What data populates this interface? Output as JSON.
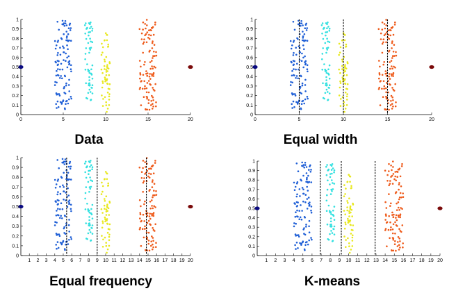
{
  "colors": {
    "cluster1": "#1f5fd6",
    "cluster2": "#33e0e0",
    "cluster3": "#e8e820",
    "cluster4": "#ee5a1a",
    "left_outlier": "#0a0a80",
    "right_outlier": "#7a0a0a",
    "cut_line": "#000000"
  },
  "chart_data": [
    {
      "type": "scatter",
      "title": "Data",
      "xlim": [
        0,
        20
      ],
      "ylim": [
        0,
        1
      ],
      "x_ticks": [
        0,
        5,
        10,
        15,
        20
      ],
      "y_ticks": [
        0,
        0.1,
        0.2,
        0.3,
        0.4,
        0.5,
        0.6,
        0.7,
        0.8,
        0.9,
        1
      ],
      "clusters": [
        {
          "x_range": [
            4.0,
            6.0
          ],
          "y_range": [
            0.05,
            1.0
          ],
          "count": 110
        },
        {
          "x_range": [
            7.5,
            8.5
          ],
          "y_range": [
            0.15,
            0.98
          ],
          "count": 60
        },
        {
          "x_range": [
            9.5,
            10.5
          ],
          "y_range": [
            0.0,
            0.9
          ],
          "count": 60
        },
        {
          "x_range": [
            14.0,
            16.0
          ],
          "y_range": [
            0.05,
            1.0
          ],
          "count": 110
        }
      ],
      "outliers": [
        {
          "x": 0,
          "y": 0.5
        },
        {
          "x": 20,
          "y": 0.5
        }
      ],
      "cut_points": []
    },
    {
      "type": "scatter",
      "title": "Equal width",
      "xlim": [
        0,
        20
      ],
      "ylim": [
        0,
        1
      ],
      "x_ticks": [
        0,
        5,
        10,
        15,
        20
      ],
      "y_ticks": [
        0,
        0.1,
        0.2,
        0.3,
        0.4,
        0.5,
        0.6,
        0.7,
        0.8,
        0.9,
        1
      ],
      "clusters": [
        {
          "x_range": [
            4.0,
            6.0
          ],
          "y_range": [
            0.05,
            1.0
          ],
          "count": 110
        },
        {
          "x_range": [
            7.5,
            8.5
          ],
          "y_range": [
            0.15,
            0.98
          ],
          "count": 60
        },
        {
          "x_range": [
            9.5,
            10.5
          ],
          "y_range": [
            0.0,
            0.9
          ],
          "count": 60
        },
        {
          "x_range": [
            14.0,
            16.0
          ],
          "y_range": [
            0.05,
            1.0
          ],
          "count": 110
        }
      ],
      "outliers": [
        {
          "x": 0,
          "y": 0.5
        },
        {
          "x": 20,
          "y": 0.5
        }
      ],
      "cut_points": [
        5,
        10,
        15
      ]
    },
    {
      "type": "scatter",
      "title": "Equal frequency",
      "xlim": [
        0,
        20
      ],
      "ylim": [
        0,
        1
      ],
      "x_ticks": [
        1,
        2,
        3,
        4,
        5,
        6,
        7,
        8,
        9,
        10,
        11,
        12,
        13,
        14,
        15,
        16,
        17,
        18,
        19,
        20
      ],
      "y_ticks": [
        0,
        0.1,
        0.2,
        0.3,
        0.4,
        0.5,
        0.6,
        0.7,
        0.8,
        0.9,
        1
      ],
      "clusters": [
        {
          "x_range": [
            4.0,
            6.0
          ],
          "y_range": [
            0.05,
            1.0
          ],
          "count": 110
        },
        {
          "x_range": [
            7.5,
            8.5
          ],
          "y_range": [
            0.15,
            0.98
          ],
          "count": 60
        },
        {
          "x_range": [
            9.5,
            10.5
          ],
          "y_range": [
            0.0,
            0.9
          ],
          "count": 60
        },
        {
          "x_range": [
            14.0,
            16.0
          ],
          "y_range": [
            0.05,
            1.0
          ],
          "count": 110
        }
      ],
      "outliers": [
        {
          "x": 0,
          "y": 0.5
        },
        {
          "x": 20,
          "y": 0.5
        }
      ],
      "cut_points": [
        5.4,
        9.0,
        14.8
      ]
    },
    {
      "type": "scatter",
      "title": "K-means",
      "xlim": [
        0,
        20
      ],
      "ylim": [
        0,
        1
      ],
      "x_ticks": [
        1,
        2,
        3,
        4,
        5,
        6,
        7,
        8,
        9,
        10,
        11,
        12,
        13,
        14,
        15,
        16,
        17,
        18,
        19,
        20
      ],
      "y_ticks": [
        0,
        0.1,
        0.2,
        0.3,
        0.4,
        0.5,
        0.6,
        0.7,
        0.8,
        0.9,
        1
      ],
      "clusters": [
        {
          "x_range": [
            4.0,
            6.0
          ],
          "y_range": [
            0.05,
            1.0
          ],
          "count": 110
        },
        {
          "x_range": [
            7.5,
            8.5
          ],
          "y_range": [
            0.15,
            0.98
          ],
          "count": 60
        },
        {
          "x_range": [
            9.5,
            10.5
          ],
          "y_range": [
            0.0,
            0.9
          ],
          "count": 60
        },
        {
          "x_range": [
            14.0,
            16.0
          ],
          "y_range": [
            0.05,
            1.0
          ],
          "count": 110
        }
      ],
      "outliers": [
        {
          "x": 0,
          "y": 0.5
        },
        {
          "x": 20,
          "y": 0.5
        }
      ],
      "cut_points": [
        6.9,
        9.2,
        12.9
      ]
    }
  ]
}
